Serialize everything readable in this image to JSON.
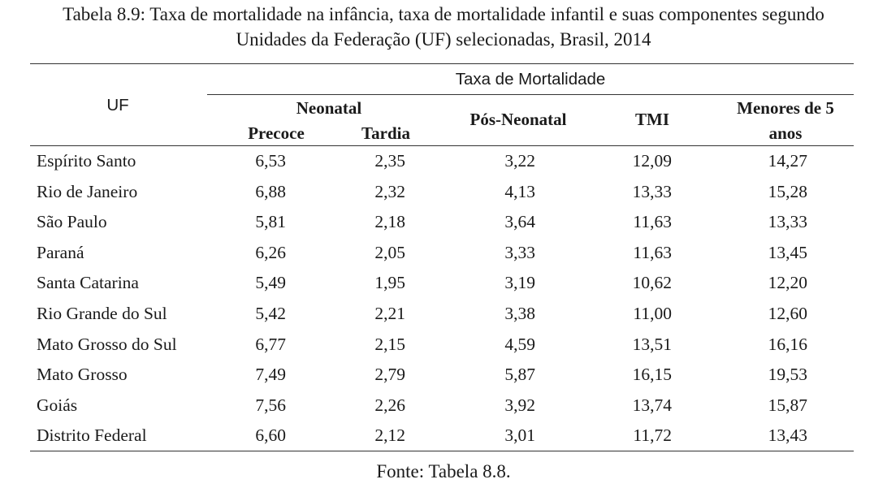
{
  "title": {
    "line1": "Tabela 8.9: Taxa de mortalidade na infância, taxa de mortalidade infantil e suas componentes segundo",
    "line2": "Unidades da Federação (UF) selecionadas, Brasil, 2014"
  },
  "header": {
    "uf": "UF",
    "group": "Taxa de Mortalidade",
    "neonatal": "Neonatal",
    "precoce": "Precoce",
    "tardia": "Tardia",
    "pos_neonatal": "Pós-Neonatal",
    "tmi": "TMI",
    "menores_line1": "Menores de 5",
    "menores_line2": "anos"
  },
  "rows": [
    {
      "uf": "Espírito Santo",
      "precoce": "6,53",
      "tardia": "2,35",
      "pos_neonatal": "3,22",
      "tmi": "12,09",
      "menores5": "14,27"
    },
    {
      "uf": "Rio de Janeiro",
      "precoce": "6,88",
      "tardia": "2,32",
      "pos_neonatal": "4,13",
      "tmi": "13,33",
      "menores5": "15,28"
    },
    {
      "uf": "São Paulo",
      "precoce": "5,81",
      "tardia": "2,18",
      "pos_neonatal": "3,64",
      "tmi": "11,63",
      "menores5": "13,33"
    },
    {
      "uf": "Paraná",
      "precoce": "6,26",
      "tardia": "2,05",
      "pos_neonatal": "3,33",
      "tmi": "11,63",
      "menores5": "13,45"
    },
    {
      "uf": "Santa Catarina",
      "precoce": "5,49",
      "tardia": "1,95",
      "pos_neonatal": "3,19",
      "tmi": "10,62",
      "menores5": "12,20"
    },
    {
      "uf": "Rio Grande do Sul",
      "precoce": "5,42",
      "tardia": "2,21",
      "pos_neonatal": "3,38",
      "tmi": "11,00",
      "menores5": "12,60"
    },
    {
      "uf": "Mato Grosso do Sul",
      "precoce": "6,77",
      "tardia": "2,15",
      "pos_neonatal": "4,59",
      "tmi": "13,51",
      "menores5": "16,16"
    },
    {
      "uf": "Mato Grosso",
      "precoce": "7,49",
      "tardia": "2,79",
      "pos_neonatal": "5,87",
      "tmi": "16,15",
      "menores5": "19,53"
    },
    {
      "uf": "Goiás",
      "precoce": "7,56",
      "tardia": "2,26",
      "pos_neonatal": "3,92",
      "tmi": "13,74",
      "menores5": "15,87"
    },
    {
      "uf": "Distrito Federal",
      "precoce": "6,60",
      "tardia": "2,12",
      "pos_neonatal": "3,01",
      "tmi": "11,72",
      "menores5": "13,43"
    }
  ],
  "source": "Fonte: Tabela 8.8."
}
